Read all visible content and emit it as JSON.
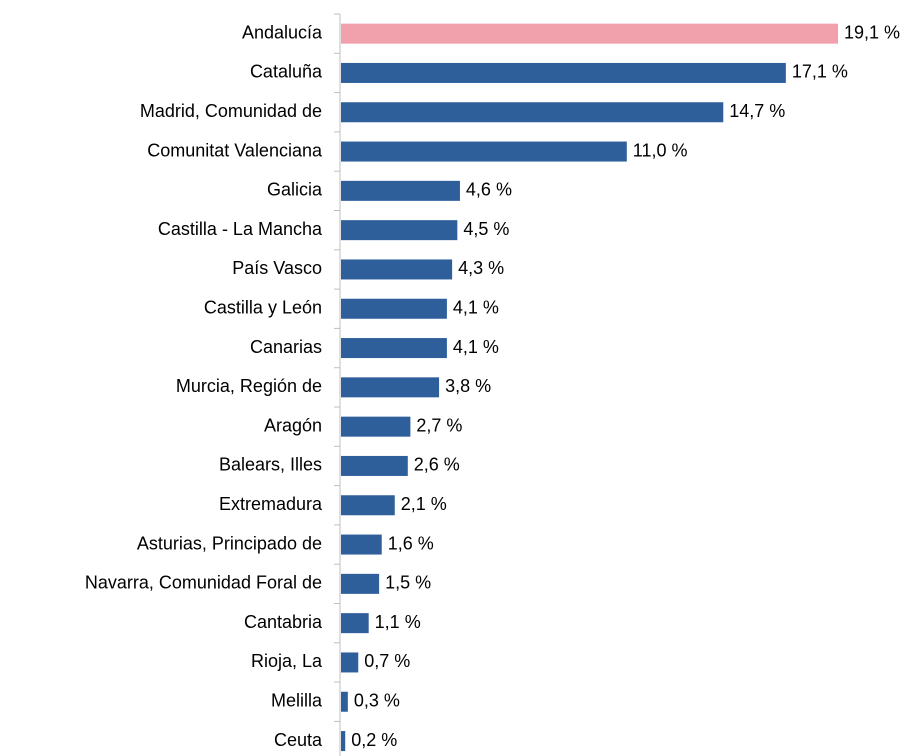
{
  "chart_data": {
    "type": "bar",
    "orientation": "horizontal",
    "categories": [
      "Andalucía",
      "Cataluña",
      "Madrid, Comunidad de",
      "Comunitat Valenciana",
      "Galicia",
      "Castilla - La Mancha",
      "País Vasco",
      "Castilla y León",
      "Canarias",
      "Murcia, Región de",
      "Aragón",
      "Balears, Illes",
      "Extremadura",
      "Asturias, Principado de",
      "Navarra, Comunidad Foral de",
      "Cantabria",
      "Rioja, La",
      "Melilla",
      "Ceuta"
    ],
    "values": [
      19.1,
      17.1,
      14.7,
      11.0,
      4.6,
      4.5,
      4.3,
      4.1,
      4.1,
      3.8,
      2.7,
      2.6,
      2.1,
      1.6,
      1.5,
      1.1,
      0.7,
      0.3,
      0.2
    ],
    "value_labels": [
      "19,1 %",
      "17,1 %",
      "14,7 %",
      "11,0 %",
      "4,6 %",
      "4,5 %",
      "4,3 %",
      "4,1 %",
      "4,1 %",
      "3,8 %",
      "2,7 %",
      "2,6 %",
      "2,1 %",
      "1,6 %",
      "1,5 %",
      "1,1 %",
      "0,7 %",
      "0,3 %",
      "0,2 %"
    ],
    "colors": [
      "#f0a1ab",
      "#2e5f9b",
      "#2e5f9b",
      "#2e5f9b",
      "#2e5f9b",
      "#2e5f9b",
      "#2e5f9b",
      "#2e5f9b",
      "#2e5f9b",
      "#2e5f9b",
      "#2e5f9b",
      "#2e5f9b",
      "#2e5f9b",
      "#2e5f9b",
      "#2e5f9b",
      "#2e5f9b",
      "#2e5f9b",
      "#2e5f9b",
      "#2e5f9b"
    ]
  }
}
